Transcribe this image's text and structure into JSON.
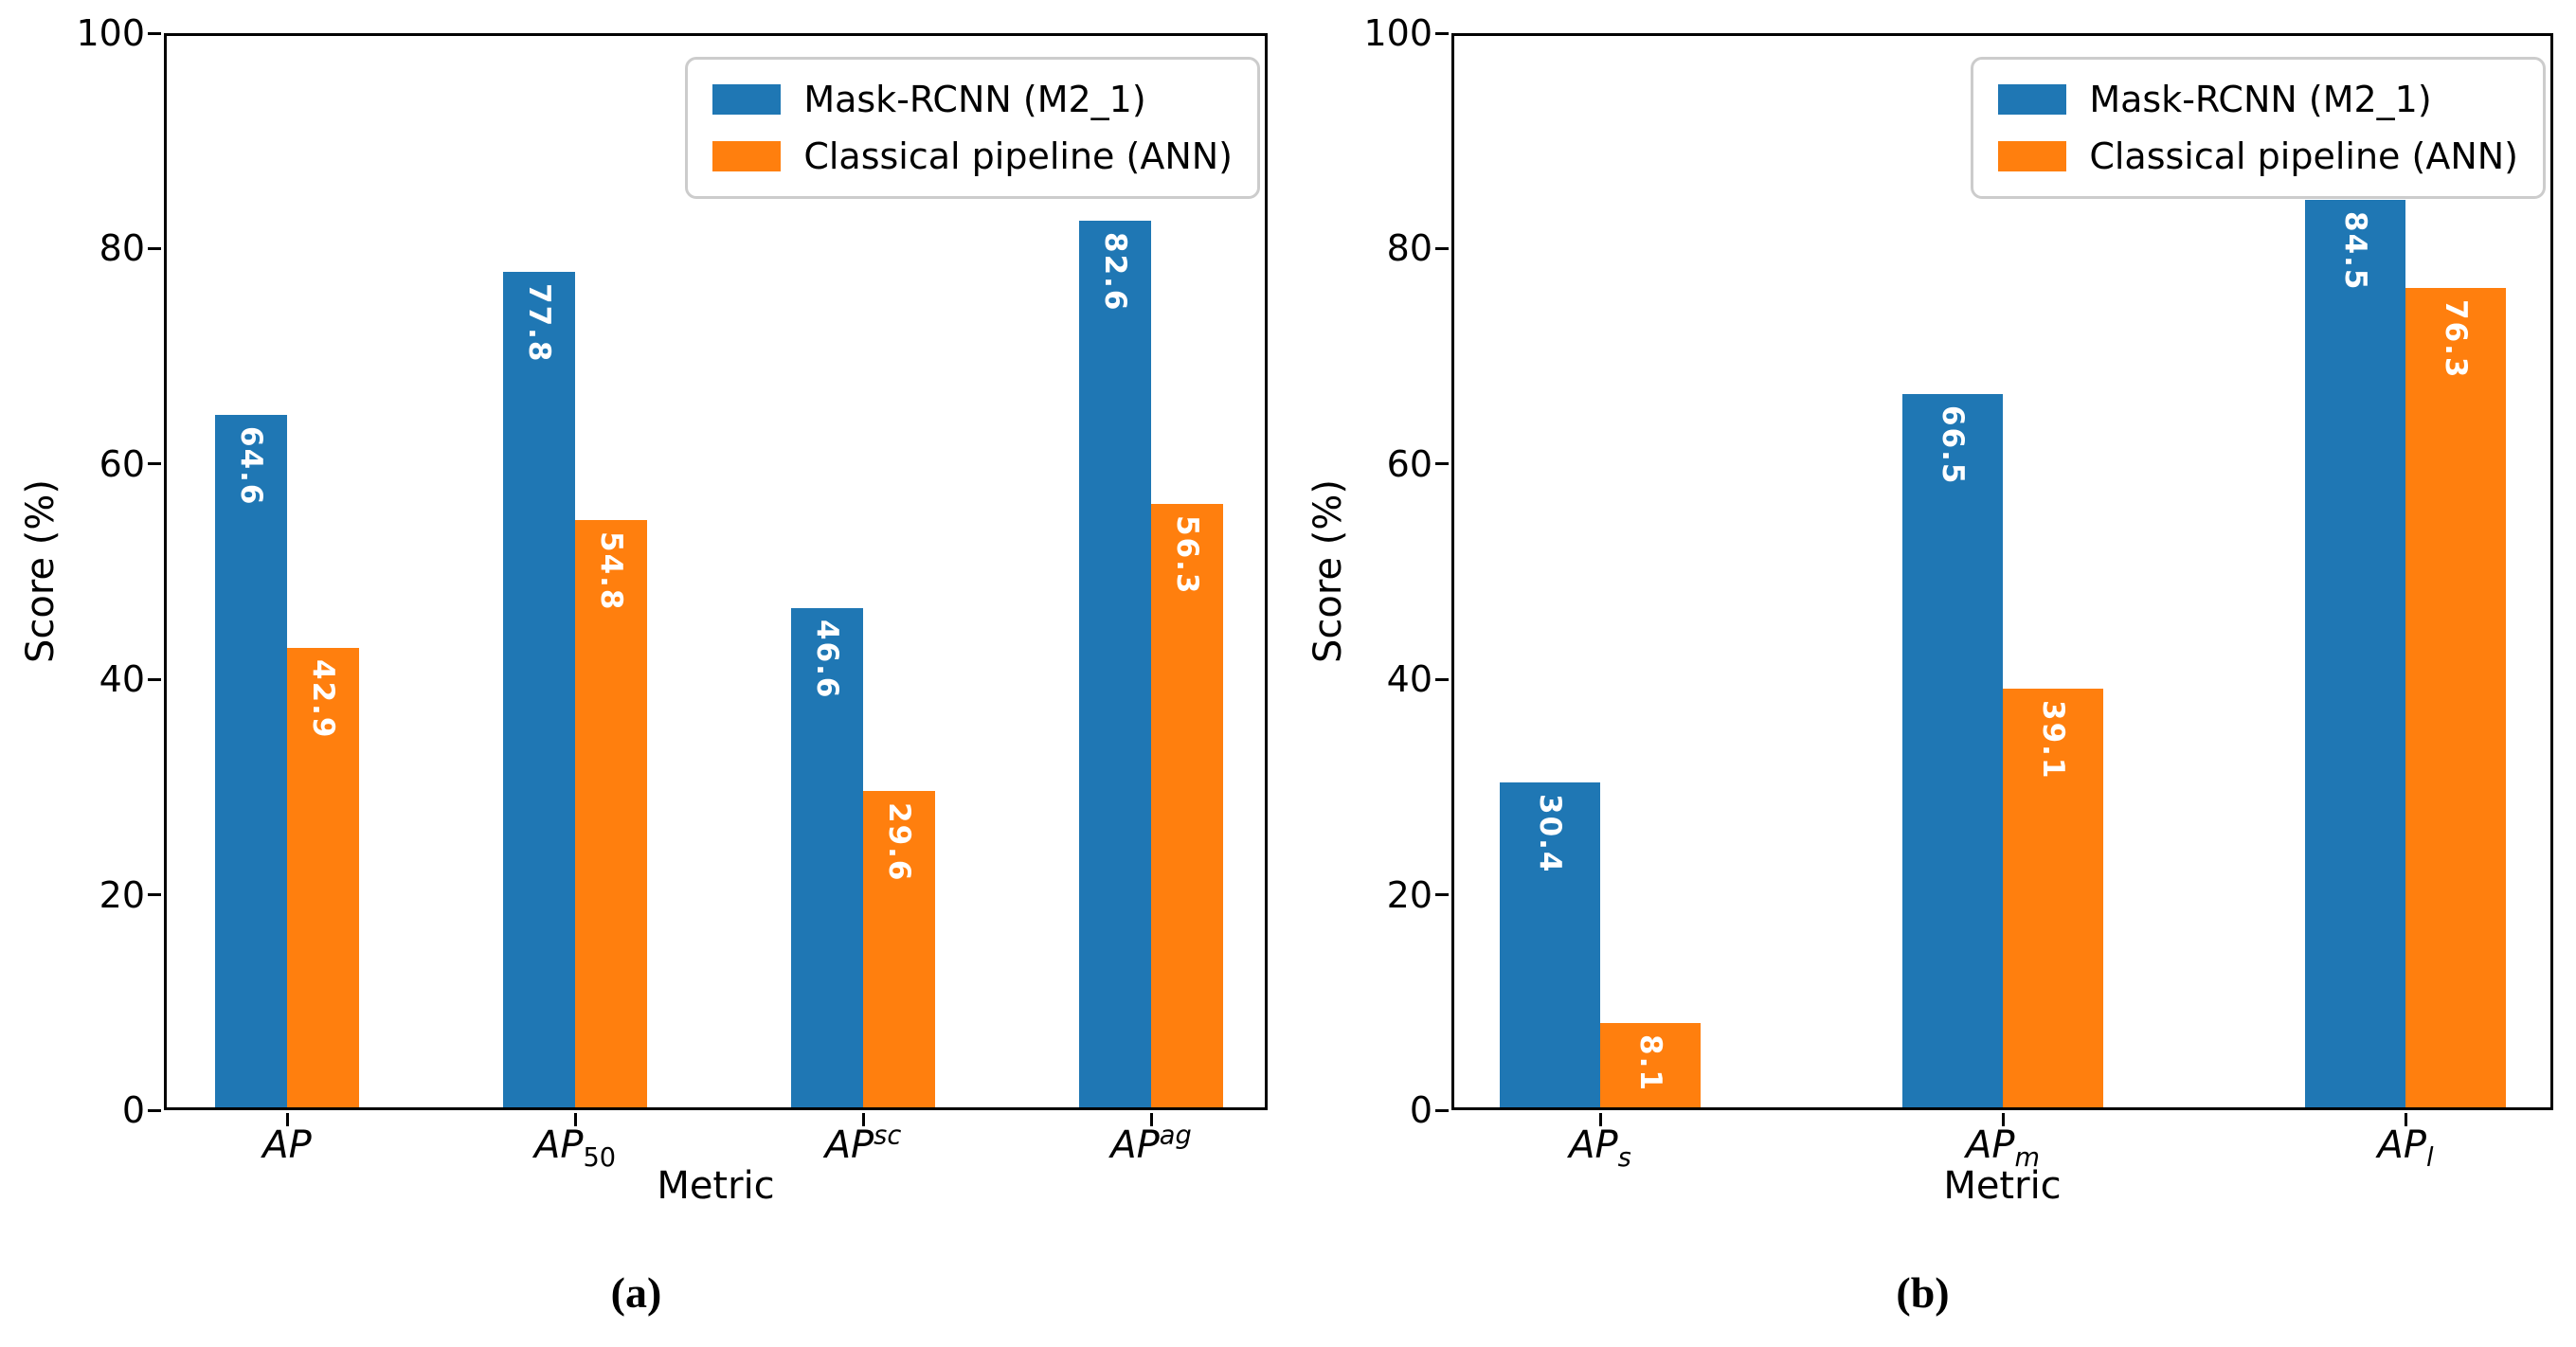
{
  "figure": {
    "background": "#ffffff"
  },
  "chart_data": [
    {
      "type": "bar",
      "caption": "(a)",
      "title": "",
      "xlabel": "Metric",
      "ylabel": "Score (%)",
      "ylim": [
        0,
        100
      ],
      "yticks": [
        0,
        20,
        40,
        60,
        80,
        100
      ],
      "grid": false,
      "legend_position": "upper right",
      "categories": [
        {
          "base": "AP",
          "sub": "",
          "sup": ""
        },
        {
          "base": "AP",
          "sub": "50",
          "sup": ""
        },
        {
          "base": "AP",
          "sub": "",
          "sup": "sc"
        },
        {
          "base": "AP",
          "sub": "",
          "sup": "ag"
        }
      ],
      "series": [
        {
          "name": "Mask-RCNN (M2_1)",
          "color": "#1f77b4",
          "values": [
            64.6,
            77.8,
            46.6,
            82.6
          ]
        },
        {
          "name": "Classical pipeline (ANN)",
          "color": "#ff7f0e",
          "values": [
            42.9,
            54.8,
            29.6,
            56.3
          ]
        }
      ]
    },
    {
      "type": "bar",
      "caption": "(b)",
      "title": "",
      "xlabel": "Metric",
      "ylabel": "Score (%)",
      "ylim": [
        0,
        100
      ],
      "yticks": [
        0,
        20,
        40,
        60,
        80,
        100
      ],
      "grid": false,
      "legend_position": "upper right",
      "categories": [
        {
          "base": "AP",
          "sub": "s",
          "sup": ""
        },
        {
          "base": "AP",
          "sub": "m",
          "sup": ""
        },
        {
          "base": "AP",
          "sub": "l",
          "sup": ""
        }
      ],
      "series": [
        {
          "name": "Mask-RCNN (M2_1)",
          "color": "#1f77b4",
          "values": [
            30.4,
            66.5,
            84.5
          ]
        },
        {
          "name": "Classical pipeline (ANN)",
          "color": "#ff7f0e",
          "values": [
            8.1,
            39.1,
            76.3
          ]
        }
      ]
    }
  ]
}
